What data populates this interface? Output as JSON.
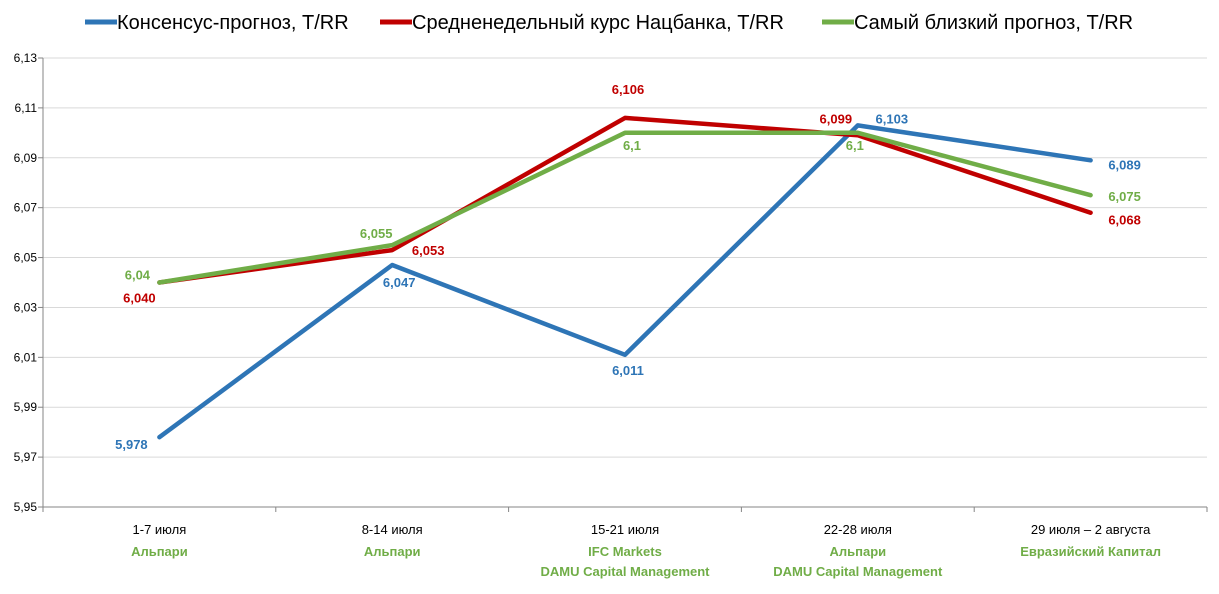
{
  "chart_data": {
    "type": "line",
    "title": "",
    "xlabel": "",
    "ylabel": "",
    "ylim": [
      5.95,
      6.13
    ],
    "y_ticks": [
      "5,95",
      "5,97",
      "5,99",
      "6,01",
      "6,03",
      "6,05",
      "6,07",
      "6,09",
      "6,11",
      "6,13"
    ],
    "y_tick_values": [
      5.95,
      5.97,
      5.99,
      6.01,
      6.03,
      6.05,
      6.07,
      6.09,
      6.11,
      6.13
    ],
    "grid": true,
    "legend_position": "top",
    "categories": [
      "1-7 июля",
      "8-14 июля",
      "15-21 июля",
      "22-28 июля",
      "29 июля – 2 августа"
    ],
    "category_sublabels": [
      [
        "Альпари"
      ],
      [
        "Альпари"
      ],
      [
        "IFC Markets",
        "DAMU Capital Management"
      ],
      [
        "Альпари",
        "DAMU Capital Management"
      ],
      [
        "Евразийский Капитал"
      ]
    ],
    "sublabel_color": "#70ad47",
    "series": [
      {
        "name": "Консенсус-прогноз, Т/RR",
        "color": "#2e75b6",
        "values": [
          5.978,
          6.047,
          6.011,
          6.103,
          6.089
        ],
        "labels": [
          "5,978",
          "6,047",
          "6,011",
          "6,103",
          "6,089"
        ]
      },
      {
        "name": "Средненедельный курс Нацбанка, Т/RR",
        "color": "#c00000",
        "values": [
          6.04,
          6.053,
          6.106,
          6.099,
          6.068
        ],
        "labels": [
          "6,040",
          "6,053",
          "6,106",
          "6,099",
          "6,068"
        ]
      },
      {
        "name": "Самый близкий прогноз, Т/RR",
        "color": "#70ad47",
        "values": [
          6.04,
          6.055,
          6.1,
          6.1,
          6.075
        ],
        "labels": [
          "6,04",
          "6,055",
          "6,1",
          "6,1",
          "6,075"
        ]
      }
    ]
  }
}
